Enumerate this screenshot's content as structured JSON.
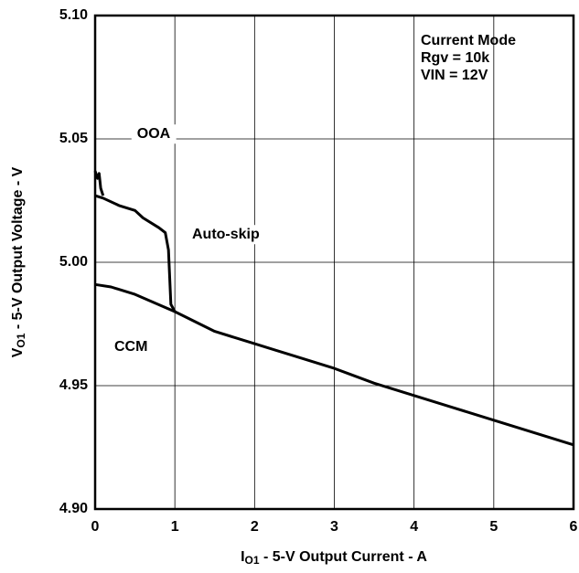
{
  "chart_data": {
    "type": "line",
    "xlabel": [
      "I",
      "O1",
      " - 5-V Output Current - A"
    ],
    "ylabel": [
      "V",
      "O1",
      " - 5-V Output Voltage - V"
    ],
    "xlim": [
      0,
      6
    ],
    "ylim": [
      4.9,
      5.1
    ],
    "xticks": [
      0,
      1,
      2,
      3,
      4,
      5,
      6
    ],
    "yticks": [
      {
        "value": 4.9,
        "label": "4.90"
      },
      4.95,
      {
        "value": 5.0,
        "label": "5.00"
      },
      5.05,
      {
        "value": 5.1,
        "label": "5.10"
      }
    ],
    "grid": true,
    "series": [
      {
        "color": "#000000",
        "x": [
          0,
          0.2,
          0.5,
          1,
          1.5,
          2,
          2.5,
          3,
          3.5,
          4,
          4.5,
          5,
          5.5,
          6
        ],
        "values": [
          4.991,
          4.99,
          4.987,
          4.98,
          4.972,
          4.967,
          4.962,
          4.957,
          4.951,
          4.946,
          4.941,
          4.936,
          4.931,
          4.926
        ]
      },
      {
        "color": "#000000",
        "x": [
          0,
          0.1,
          0.3,
          0.5,
          0.6,
          0.8,
          0.88,
          0.92,
          0.95,
          1
        ],
        "values": [
          5.027,
          5.026,
          5.023,
          5.021,
          5.018,
          5.014,
          5.012,
          5.005,
          4.983,
          4.98
        ]
      },
      {
        "color": "#000000",
        "x": [
          0,
          0.03,
          0.05,
          0.07,
          0.1
        ],
        "values": [
          5.037,
          5.034,
          5.036,
          5.03,
          5.027
        ]
      }
    ],
    "annotations": [
      "Current Mode",
      "Rgv = 10k",
      "VIN = 12V",
      "OOA",
      "Auto-skip",
      "CCM"
    ]
  }
}
